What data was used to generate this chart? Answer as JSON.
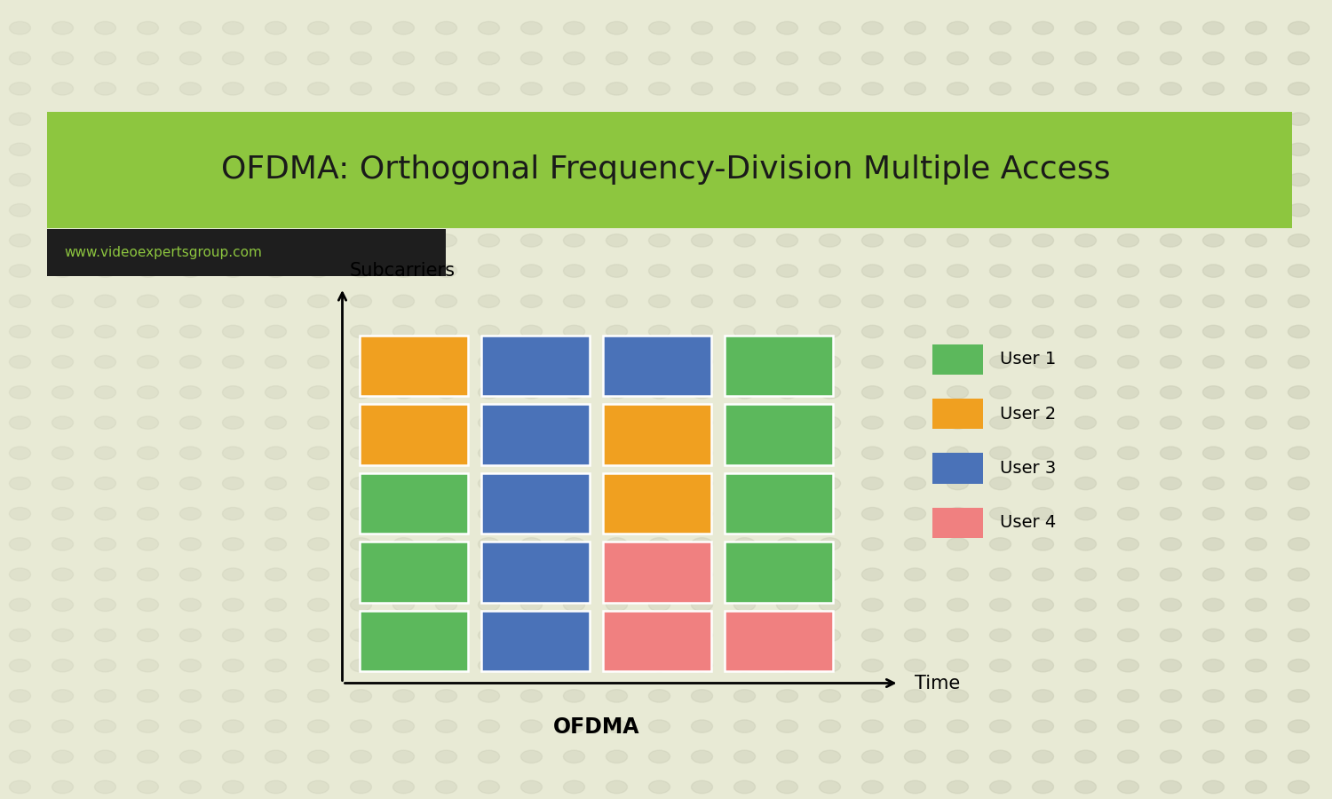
{
  "title": "OFDMA: Orthogonal Frequency-Division Multiple Access",
  "subtitle": "www.videoexpertsgroup.com",
  "xlabel": "Time",
  "ylabel": "Subcarriers",
  "bottom_label": "OFDMA",
  "background_color": "#e8ead5",
  "title_bg_color": "#8dc63f",
  "subtitle_bg_color": "#1e1e1e",
  "title_color": "#1a1a1a",
  "subtitle_color": "#8dc63f",
  "colors": {
    "user1": "#5cb85c",
    "user2": "#f0a020",
    "user3": "#4a72b8",
    "user4": "#f08080"
  },
  "legend_labels": [
    "User 1",
    "User 2",
    "User 3",
    "User 4"
  ],
  "grid": [
    [
      "user2",
      "user3",
      "user3",
      "user1"
    ],
    [
      "user2",
      "user3",
      "user2",
      "user1"
    ],
    [
      "user1",
      "user3",
      "user2",
      "user1"
    ],
    [
      "user1",
      "user3",
      "user4",
      "user1"
    ],
    [
      "user1",
      "user3",
      "user4",
      "user4"
    ]
  ],
  "n_rows": 5,
  "n_cols": 4,
  "figsize": [
    15,
    9
  ],
  "dpi": 100
}
